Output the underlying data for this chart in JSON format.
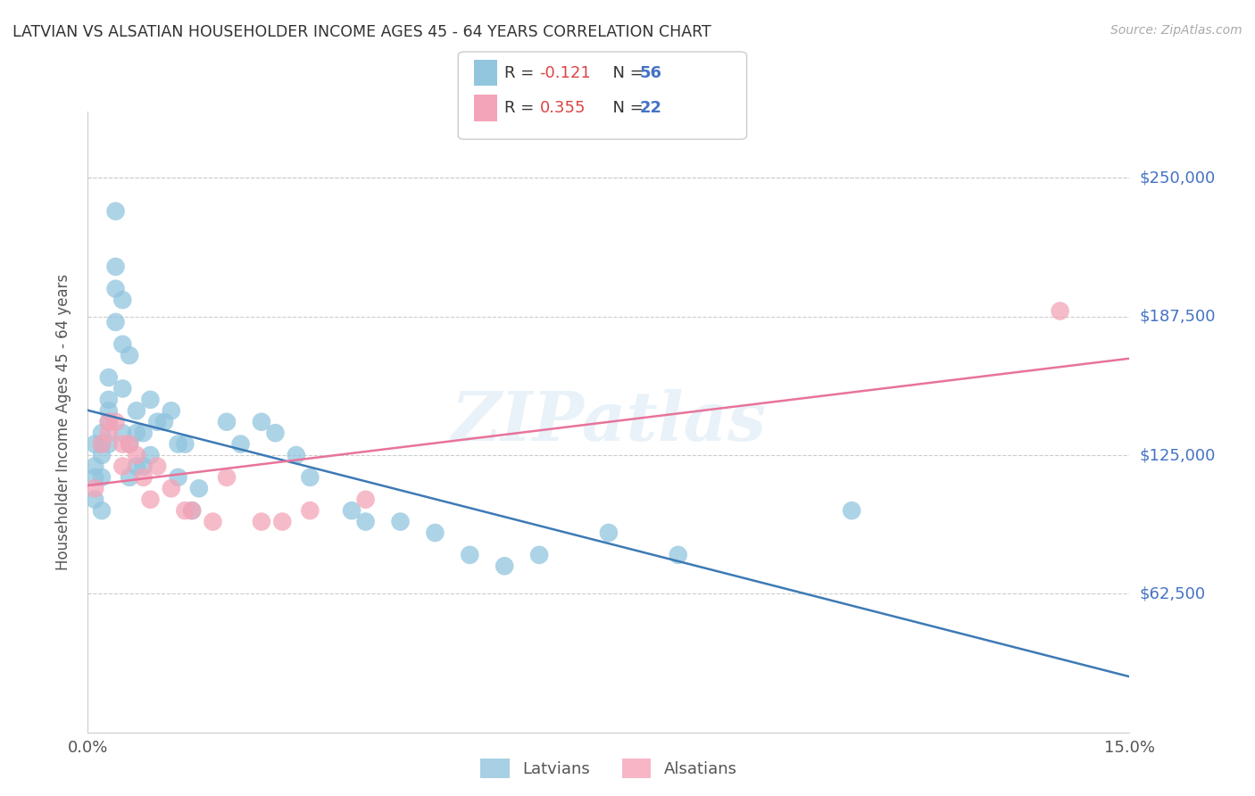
{
  "title": "LATVIAN VS ALSATIAN HOUSEHOLDER INCOME AGES 45 - 64 YEARS CORRELATION CHART",
  "source": "Source: ZipAtlas.com",
  "ylabel": "Householder Income Ages 45 - 64 years",
  "ytick_labels": [
    "$62,500",
    "$125,000",
    "$187,500",
    "$250,000"
  ],
  "ytick_values": [
    62500,
    125000,
    187500,
    250000
  ],
  "ymin": 0,
  "ymax": 280000,
  "xmin": 0.0,
  "xmax": 0.15,
  "latvian_color": "#92c5de",
  "alsatian_color": "#f4a4b8",
  "latvian_line_color": "#3d7ab5",
  "alsatian_line_color": "#e8739a",
  "latvian_n": 56,
  "alsatian_n": 22,
  "latvian_r": "-0.121",
  "alsatian_r": "0.355",
  "latvian_x": [
    0.001,
    0.001,
    0.001,
    0.001,
    0.002,
    0.002,
    0.002,
    0.002,
    0.002,
    0.003,
    0.003,
    0.003,
    0.003,
    0.003,
    0.004,
    0.004,
    0.004,
    0.004,
    0.005,
    0.005,
    0.005,
    0.005,
    0.006,
    0.006,
    0.006,
    0.007,
    0.007,
    0.007,
    0.008,
    0.008,
    0.009,
    0.009,
    0.01,
    0.011,
    0.012,
    0.013,
    0.013,
    0.014,
    0.015,
    0.016,
    0.02,
    0.022,
    0.025,
    0.027,
    0.03,
    0.032,
    0.038,
    0.04,
    0.045,
    0.05,
    0.055,
    0.06,
    0.065,
    0.075,
    0.085,
    0.11
  ],
  "latvian_y": [
    130000,
    120000,
    115000,
    105000,
    135000,
    130000,
    125000,
    115000,
    100000,
    150000,
    145000,
    140000,
    160000,
    130000,
    210000,
    235000,
    200000,
    185000,
    195000,
    175000,
    155000,
    135000,
    170000,
    130000,
    115000,
    145000,
    135000,
    120000,
    135000,
    120000,
    150000,
    125000,
    140000,
    140000,
    145000,
    130000,
    115000,
    130000,
    100000,
    110000,
    140000,
    130000,
    140000,
    135000,
    125000,
    115000,
    100000,
    95000,
    95000,
    90000,
    80000,
    75000,
    80000,
    90000,
    80000,
    100000
  ],
  "alsatian_x": [
    0.001,
    0.002,
    0.003,
    0.003,
    0.004,
    0.005,
    0.005,
    0.006,
    0.007,
    0.008,
    0.009,
    0.01,
    0.012,
    0.014,
    0.015,
    0.018,
    0.02,
    0.025,
    0.028,
    0.032,
    0.04,
    0.14
  ],
  "alsatian_y": [
    110000,
    130000,
    135000,
    140000,
    140000,
    130000,
    120000,
    130000,
    125000,
    115000,
    105000,
    120000,
    110000,
    100000,
    100000,
    95000,
    115000,
    95000,
    95000,
    100000,
    105000,
    190000
  ]
}
